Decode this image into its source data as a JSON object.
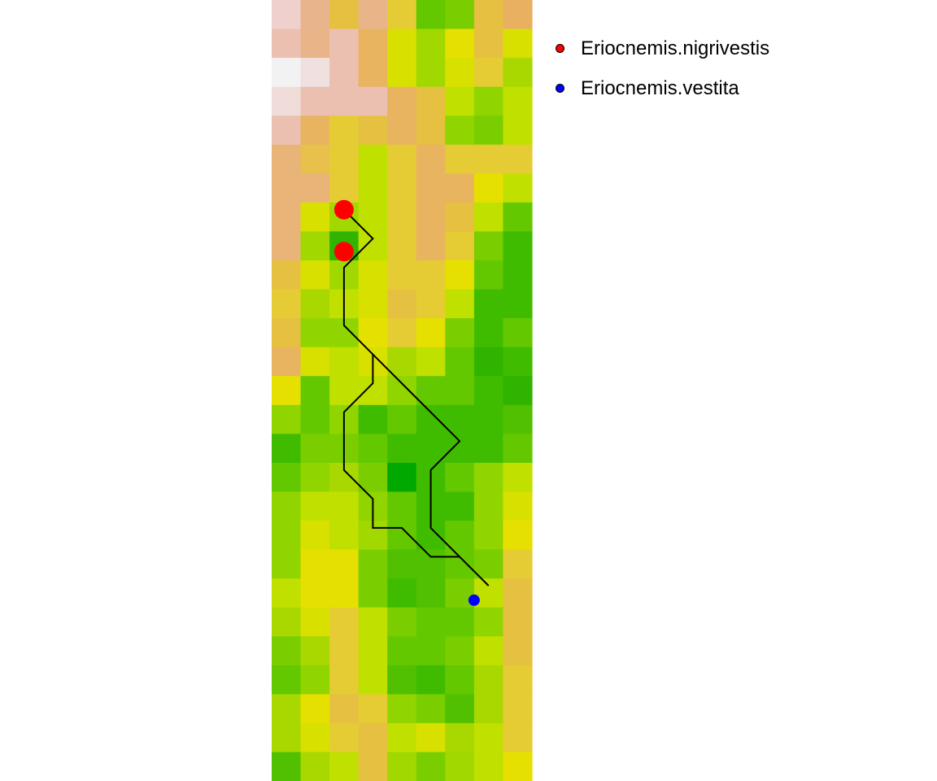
{
  "map": {
    "raster": {
      "ncols": 9,
      "nrows": 27,
      "cells": [
        [
          "#f0d0cc",
          "#e8b48c",
          "#e6c040",
          "#e8b488",
          "#e6cc34",
          "#64c800",
          "#7ace00",
          "#e6c040",
          "#e8b060"
        ],
        [
          "#ecc0b0",
          "#e8b488",
          "#ecc0b0",
          "#e8b460",
          "#d8e000",
          "#a0d800",
          "#e6e000",
          "#e6c040",
          "#d8e000"
        ],
        [
          "#f2f2f2",
          "#f0e0e0",
          "#ecc0b0",
          "#e8b460",
          "#d8e000",
          "#a0d800",
          "#d8e000",
          "#e6cc34",
          "#a8d800"
        ],
        [
          "#f0dcd8",
          "#ecc0b0",
          "#ecc0b0",
          "#ecc0b0",
          "#e8b460",
          "#e6c040",
          "#c0e000",
          "#90d400",
          "#c0e000"
        ],
        [
          "#ecc0b0",
          "#e8b460",
          "#e6cc34",
          "#e6c040",
          "#e8b460",
          "#e6c040",
          "#90d400",
          "#7ace00",
          "#c0e000"
        ],
        [
          "#e8b478",
          "#e8c04c",
          "#e6cc34",
          "#c0e000",
          "#e6cc34",
          "#e8b460",
          "#e6cc34",
          "#e6cc34",
          "#e6cc34"
        ],
        [
          "#e8b478",
          "#e8b478",
          "#e6cc34",
          "#c0e000",
          "#e6cc34",
          "#e8b460",
          "#e8b460",
          "#e6e000",
          "#c0e000"
        ],
        [
          "#e8b478",
          "#d8e000",
          "#a0d800",
          "#c0e000",
          "#e6cc34",
          "#e8b460",
          "#e6c040",
          "#c0e000",
          "#64c800"
        ],
        [
          "#e8b478",
          "#a0d800",
          "#30b400",
          "#c0e000",
          "#e6cc34",
          "#e8b460",
          "#e6cc34",
          "#7ace00",
          "#40bc00"
        ],
        [
          "#e6c040",
          "#d8e000",
          "#a0d800",
          "#d8e000",
          "#e6cc34",
          "#e6cc34",
          "#e6e000",
          "#64c800",
          "#40bc00"
        ],
        [
          "#e6cc34",
          "#a8d800",
          "#c0e000",
          "#d8e000",
          "#e6c040",
          "#e6cc34",
          "#c0e000",
          "#40bc00",
          "#40bc00"
        ],
        [
          "#e6c040",
          "#90d400",
          "#90d400",
          "#e6e000",
          "#e6cc34",
          "#e6e000",
          "#7ace00",
          "#40bc00",
          "#64c800"
        ],
        [
          "#e8b460",
          "#d8e000",
          "#c0e000",
          "#d8e000",
          "#a8d800",
          "#c0e000",
          "#64c800",
          "#30b400",
          "#40bc00"
        ],
        [
          "#e6e000",
          "#64c800",
          "#c0e000",
          "#c0e000",
          "#90d400",
          "#64c800",
          "#64c800",
          "#40bc00",
          "#30b400"
        ],
        [
          "#90d400",
          "#64c800",
          "#90d400",
          "#40bc00",
          "#64c800",
          "#40bc00",
          "#40bc00",
          "#40bc00",
          "#50c000"
        ],
        [
          "#40bc00",
          "#7ace00",
          "#7ace00",
          "#64c800",
          "#40bc00",
          "#40bc00",
          "#40bc00",
          "#40bc00",
          "#64c800"
        ],
        [
          "#64c800",
          "#90d400",
          "#a8d800",
          "#7ace00",
          "#00a800",
          "#40bc00",
          "#64c800",
          "#90d400",
          "#c0e000"
        ],
        [
          "#90d400",
          "#c0e000",
          "#c0e000",
          "#90d400",
          "#64c800",
          "#40bc00",
          "#40bc00",
          "#90d400",
          "#d8e000"
        ],
        [
          "#90d400",
          "#d8e000",
          "#c0e000",
          "#a0d800",
          "#64c800",
          "#40bc00",
          "#64c800",
          "#90d400",
          "#e6e000"
        ],
        [
          "#90d400",
          "#e6e000",
          "#e6e000",
          "#7ace00",
          "#50c000",
          "#50c000",
          "#64c800",
          "#7ace00",
          "#e6cc34"
        ],
        [
          "#c0e000",
          "#e6e000",
          "#e6e000",
          "#7ace00",
          "#40bc00",
          "#50c000",
          "#7ace00",
          "#c0e000",
          "#e6c040"
        ],
        [
          "#a8d800",
          "#d8e000",
          "#e6cc34",
          "#c0e000",
          "#7ace00",
          "#64c800",
          "#64c800",
          "#90d400",
          "#e6c040"
        ],
        [
          "#7ace00",
          "#a8d800",
          "#e6cc34",
          "#c0e000",
          "#64c800",
          "#64c800",
          "#7ace00",
          "#c0e000",
          "#e6c040"
        ],
        [
          "#64c800",
          "#90d400",
          "#e6cc34",
          "#c0e000",
          "#50c000",
          "#40bc00",
          "#64c800",
          "#a8d800",
          "#e6cc34"
        ],
        [
          "#a8d800",
          "#e6e000",
          "#e6c040",
          "#e6cc34",
          "#90d400",
          "#7ace00",
          "#50c000",
          "#a8d800",
          "#e6cc34"
        ],
        [
          "#a8d800",
          "#d8e000",
          "#e6cc34",
          "#e6c040",
          "#c0e000",
          "#d8e000",
          "#a8d800",
          "#c0e000",
          "#e6cc34"
        ],
        [
          "#50c000",
          "#a8d800",
          "#c0e000",
          "#e6c040",
          "#a0d800",
          "#7ace00",
          "#a0d800",
          "#c0e000",
          "#e6e000"
        ]
      ]
    },
    "paths": [
      [
        [
          2.5,
          7.25
        ],
        [
          3.5,
          8.25
        ],
        [
          2.5,
          9.25
        ],
        [
          2.5,
          11.25
        ],
        [
          3.5,
          12.25
        ],
        [
          6.5,
          15.25
        ],
        [
          5.5,
          16.25
        ],
        [
          5.5,
          18.25
        ],
        [
          7.5,
          20.25
        ]
      ],
      [
        [
          3.5,
          12.25
        ],
        [
          3.5,
          13.25
        ],
        [
          2.5,
          14.25
        ],
        [
          2.5,
          16.25
        ],
        [
          3.5,
          17.25
        ],
        [
          3.5,
          18.25
        ],
        [
          4.5,
          18.25
        ],
        [
          5.5,
          19.25
        ],
        [
          6.5,
          19.25
        ]
      ]
    ],
    "points": [
      {
        "species": "Eriocnemis.nigrivestis",
        "col": 2.5,
        "row": 7.25,
        "size": "large"
      },
      {
        "species": "Eriocnemis.nigrivestis",
        "col": 2.5,
        "row": 8.7,
        "size": "large"
      },
      {
        "species": "Eriocnemis.vestita",
        "col": 7.0,
        "row": 20.75,
        "size": "small"
      }
    ]
  },
  "legend": {
    "items": [
      {
        "label": "Eriocnemis.nigrivestis",
        "color": "#ff0000"
      },
      {
        "label": "Eriocnemis.vestita",
        "color": "#0000ff"
      }
    ]
  }
}
